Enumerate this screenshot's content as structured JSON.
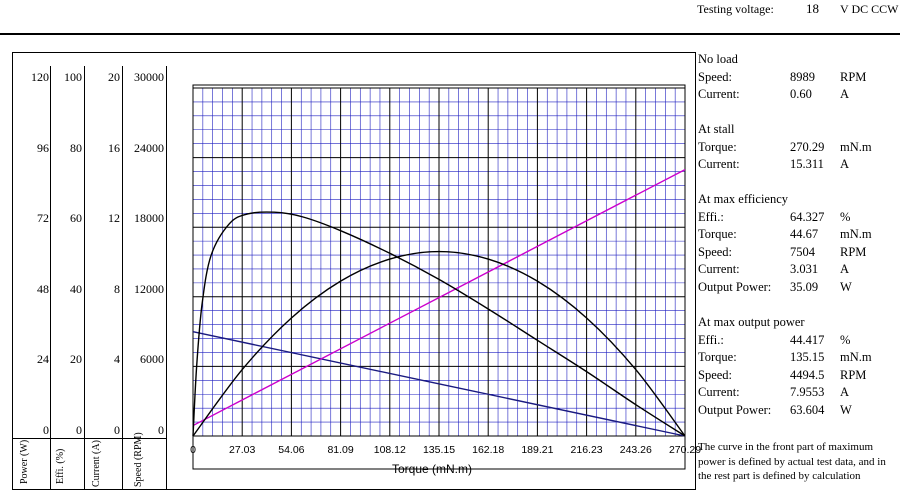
{
  "header": {
    "testing_voltage_label": "Testing voltage:",
    "voltage_value": "18",
    "voltage_unit": "V DC CCW"
  },
  "axes_panel": {
    "col_labels": [
      "Power (W)",
      "Effi. (%)",
      "Current (A)",
      "Speed (RPM)"
    ],
    "rows": [
      [
        "120",
        "100",
        "20",
        "30000"
      ],
      [
        "96",
        "80",
        "16",
        "24000"
      ],
      [
        "72",
        "60",
        "12",
        "18000"
      ],
      [
        "48",
        "40",
        "8",
        "12000"
      ],
      [
        "24",
        "20",
        "4",
        "6000"
      ],
      [
        "0",
        "0",
        "0",
        "0"
      ]
    ]
  },
  "specs": {
    "no_load": {
      "title": "No load",
      "rows": [
        {
          "label": "Speed:",
          "value": "8989",
          "unit": "RPM"
        },
        {
          "label": "Current:",
          "value": "0.60",
          "unit": "A"
        }
      ]
    },
    "stall": {
      "title": "At stall",
      "rows": [
        {
          "label": "Torque:",
          "value": "270.29",
          "unit": "mN.m"
        },
        {
          "label": "Current:",
          "value": "15.311",
          "unit": "A"
        }
      ]
    },
    "max_eff": {
      "title": "At max efficiency",
      "rows": [
        {
          "label": "Effi.:",
          "value": "64.327",
          "unit": "%"
        },
        {
          "label": "Torque:",
          "value": "44.67",
          "unit": "mN.m"
        },
        {
          "label": "Speed:",
          "value": "7504",
          "unit": "RPM"
        },
        {
          "label": "Current:",
          "value": "3.031",
          "unit": "A"
        },
        {
          "label": "Output Power:",
          "value": "35.09",
          "unit": "W"
        }
      ]
    },
    "max_power": {
      "title": "At max output power",
      "rows": [
        {
          "label": "Effi.:",
          "value": "44.417",
          "unit": "%"
        },
        {
          "label": "Torque:",
          "value": "135.15",
          "unit": "mN.m"
        },
        {
          "label": "Speed:",
          "value": "4494.5",
          "unit": "RPM"
        },
        {
          "label": "Current:",
          "value": "7.9553",
          "unit": "A"
        },
        {
          "label": "Output Power:",
          "value": "63.604",
          "unit": "W"
        }
      ]
    },
    "note": [
      "The curve in the front part of maximum",
      "power is defined by actual test data, and in",
      "the rest part is defined by calculation"
    ]
  },
  "chart_data": {
    "type": "line",
    "xlabel": "Torque (mN.m)",
    "x_ticks": [
      "0",
      "27.03",
      "54.06",
      "81.09",
      "108.12",
      "135.15",
      "162.18",
      "189.21",
      "216.23",
      "243.26",
      "270.29"
    ],
    "xlim": [
      0,
      270.29
    ],
    "grid": true,
    "colors": {
      "grid_major": "#000000",
      "grid_minor": "#2020c0",
      "speed": "#1a1a80",
      "current": "#cc00cc",
      "power": "#000000",
      "efficiency": "#000000"
    },
    "series": [
      {
        "key": "speed",
        "axis": "Speed (RPM)",
        "ymax": 30000,
        "x": [
          0,
          270.29
        ],
        "y": [
          8989,
          0
        ]
      },
      {
        "key": "current",
        "axis": "Current (A)",
        "ymax": 20,
        "x": [
          0,
          270.29
        ],
        "y": [
          0.6,
          15.311
        ]
      },
      {
        "key": "power",
        "axis": "Power (W)",
        "ymax": 120,
        "x": [
          0,
          27.03,
          54.06,
          81.09,
          108.12,
          135.15,
          162.18,
          189.21,
          216.23,
          243.26,
          270.29
        ],
        "y": [
          0,
          22.9,
          40.7,
          53.4,
          61.0,
          63.6,
          61.0,
          53.4,
          40.7,
          22.9,
          0
        ]
      },
      {
        "key": "efficiency",
        "axis": "Effi. (%)",
        "ymax": 100,
        "x": [
          0,
          2,
          5,
          10,
          20,
          30,
          44.67,
          60,
          81.09,
          108.12,
          135.15,
          162.18,
          189.21,
          216.23,
          243.26,
          270.29
        ],
        "y": [
          0,
          20,
          38,
          52,
          61,
          63.8,
          64.3,
          63,
          59,
          52.5,
          45,
          36.5,
          27.5,
          18.5,
          9,
          0
        ]
      }
    ]
  }
}
